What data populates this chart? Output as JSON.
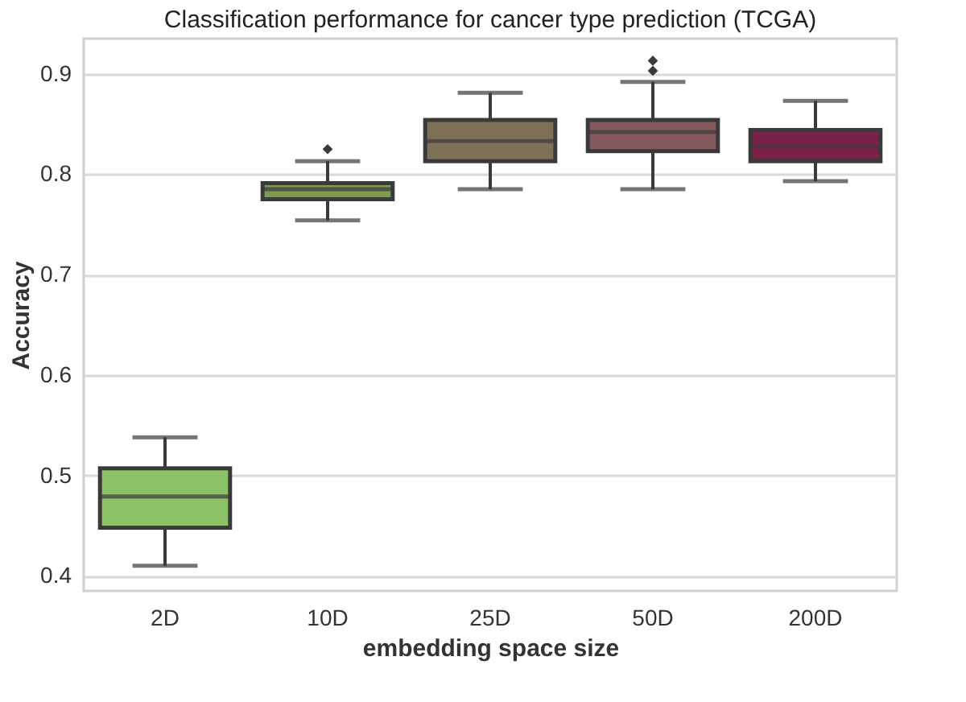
{
  "chart_data": {
    "type": "box",
    "title": "Classification performance for cancer type prediction (TCGA)",
    "xlabel": "embedding space size",
    "ylabel": "Accuracy",
    "categories": [
      "2D",
      "10D",
      "25D",
      "50D",
      "200D"
    ],
    "colors": [
      "#8ac265",
      "#7f9a55",
      "#7f7157",
      "#845a5d",
      "#7a2249"
    ],
    "boxes": [
      {
        "low": 0.41,
        "q1": 0.448,
        "median": 0.479,
        "q3": 0.507,
        "high": 0.538
      },
      {
        "low": 0.754,
        "q1": 0.775,
        "median": 0.785,
        "q3": 0.791,
        "high": 0.813,
        "outliers": [
          0.825
        ]
      },
      {
        "low": 0.785,
        "q1": 0.813,
        "median": 0.833,
        "q3": 0.854,
        "high": 0.881
      },
      {
        "low": 0.785,
        "q1": 0.823,
        "median": 0.842,
        "q3": 0.854,
        "high": 0.892,
        "outliers": [
          0.903,
          0.913
        ]
      },
      {
        "low": 0.793,
        "q1": 0.813,
        "median": 0.828,
        "q3": 0.844,
        "high": 0.873
      }
    ],
    "ylim": [
      0.385,
      0.935
    ],
    "yticks": [
      0.4,
      0.5,
      0.6,
      0.7,
      0.8,
      0.9
    ],
    "grid": "y"
  }
}
